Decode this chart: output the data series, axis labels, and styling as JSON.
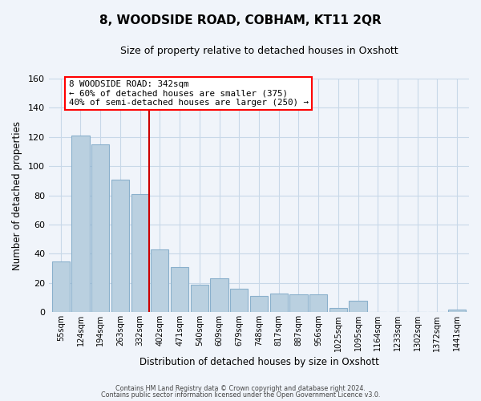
{
  "title": "8, WOODSIDE ROAD, COBHAM, KT11 2QR",
  "subtitle": "Size of property relative to detached houses in Oxshott",
  "xlabel": "Distribution of detached houses by size in Oxshott",
  "ylabel": "Number of detached properties",
  "bar_labels": [
    "55sqm",
    "124sqm",
    "194sqm",
    "263sqm",
    "332sqm",
    "402sqm",
    "471sqm",
    "540sqm",
    "609sqm",
    "679sqm",
    "748sqm",
    "817sqm",
    "887sqm",
    "956sqm",
    "1025sqm",
    "1095sqm",
    "1164sqm",
    "1233sqm",
    "1302sqm",
    "1372sqm",
    "1441sqm"
  ],
  "bar_values": [
    35,
    121,
    115,
    91,
    81,
    43,
    31,
    19,
    23,
    16,
    11,
    13,
    12,
    12,
    3,
    8,
    0,
    0,
    0,
    0,
    2
  ],
  "bar_color": "#bad0e0",
  "bar_edge_color": "#8ab0cc",
  "ref_line_color": "#cc0000",
  "annotation_line1": "8 WOODSIDE ROAD: 342sqm",
  "annotation_line2": "← 60% of detached houses are smaller (375)",
  "annotation_line3": "40% of semi-detached houses are larger (250) →",
  "ylim": [
    0,
    160
  ],
  "yticks": [
    0,
    20,
    40,
    60,
    80,
    100,
    120,
    140,
    160
  ],
  "footer1": "Contains HM Land Registry data © Crown copyright and database right 2024.",
  "footer2": "Contains public sector information licensed under the Open Government Licence v3.0.",
  "bg_color": "#f0f4fa",
  "grid_color": "#c8d8e8"
}
